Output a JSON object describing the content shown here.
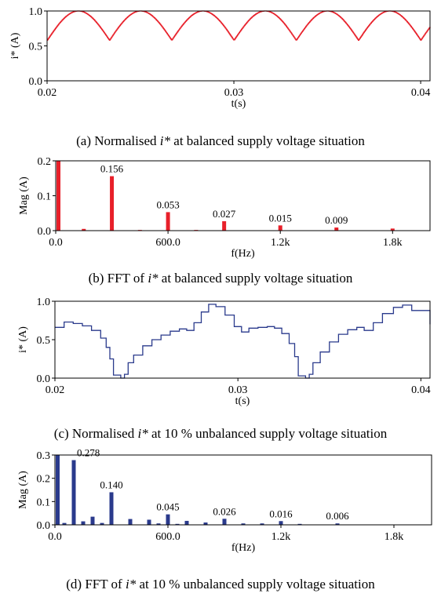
{
  "chart_data": [
    {
      "id": "a",
      "type": "line",
      "caption": {
        "prefix": "(a)  Normalised ",
        "var": "i*",
        "suffix": " at balanced supply voltage situation"
      },
      "xlabel": "t(s)",
      "ylabel": "i* (A)",
      "xlim": [
        0.02,
        0.0405
      ],
      "ylim": [
        0,
        1
      ],
      "xticks": [
        0.02,
        0.03,
        0.04
      ],
      "xtick_labels": [
        "0.02",
        "0.03",
        "0.04"
      ],
      "yticks": [
        0,
        0.5,
        1
      ],
      "ytick_labels": [
        "0.0",
        "0.5",
        "1.0"
      ],
      "color": "#e8202a",
      "waveform": {
        "shape": "rectified-sine",
        "period": 0.003333,
        "first_min": 0.02,
        "min": 0.58,
        "max": 1.0
      }
    },
    {
      "id": "b",
      "type": "bar",
      "caption": {
        "prefix": "(b) FFT of ",
        "var": "i*",
        "suffix": " at balanced supply voltage situation"
      },
      "xlabel": "f(Hz)",
      "ylabel": "Mag (A)",
      "xlim": [
        0,
        2000
      ],
      "ylim": [
        0,
        0.2
      ],
      "xticks": [
        0,
        600,
        1200,
        1800
      ],
      "xtick_labels": [
        "0.0",
        "600.0",
        "1.2k",
        "1.8k"
      ],
      "yticks": [
        0,
        0.1,
        0.2
      ],
      "ytick_labels": [
        "0.0",
        "0.1",
        "0.2"
      ],
      "color": "#e8202a",
      "bars": [
        {
          "f": 0,
          "v": 0.2
        },
        {
          "f": 150,
          "v": 0.005
        },
        {
          "f": 300,
          "v": 0.156,
          "label": "0.156"
        },
        {
          "f": 450,
          "v": 0.002
        },
        {
          "f": 600,
          "v": 0.053,
          "label": "0.053"
        },
        {
          "f": 750,
          "v": 0.002
        },
        {
          "f": 900,
          "v": 0.027,
          "label": "0.027"
        },
        {
          "f": 1200,
          "v": 0.015,
          "label": "0.015"
        },
        {
          "f": 1500,
          "v": 0.009,
          "label": "0.009"
        },
        {
          "f": 1800,
          "v": 0.006
        }
      ]
    },
    {
      "id": "c",
      "type": "line",
      "caption": {
        "prefix": "(c) Normalised ",
        "var": "i*",
        "suffix": " at 10 % unbalanced supply voltage situation"
      },
      "xlabel": "t(s)",
      "ylabel": "i* (A)",
      "xlim": [
        0.02,
        0.0405
      ],
      "ylim": [
        0,
        1
      ],
      "xticks": [
        0.02,
        0.03,
        0.04
      ],
      "xtick_labels": [
        "0.02",
        "0.03",
        "0.04"
      ],
      "yticks": [
        0,
        0.5,
        1
      ],
      "ytick_labels": [
        "0.0",
        "0.5",
        "1.0"
      ],
      "color": "#2a3a8c",
      "waveform": {
        "shape": "unbalanced",
        "points": [
          [
            0.02,
            0.66
          ],
          [
            0.0205,
            0.73
          ],
          [
            0.021,
            0.71
          ],
          [
            0.0215,
            0.68
          ],
          [
            0.022,
            0.62
          ],
          [
            0.0225,
            0.52
          ],
          [
            0.0228,
            0.4
          ],
          [
            0.023,
            0.25
          ],
          [
            0.0232,
            0.04
          ],
          [
            0.0236,
            0.0
          ],
          [
            0.0238,
            0.05
          ],
          [
            0.024,
            0.2
          ],
          [
            0.0243,
            0.3
          ],
          [
            0.0248,
            0.42
          ],
          [
            0.0253,
            0.5
          ],
          [
            0.0258,
            0.56
          ],
          [
            0.0263,
            0.61
          ],
          [
            0.0268,
            0.64
          ],
          [
            0.0272,
            0.62
          ],
          [
            0.0276,
            0.72
          ],
          [
            0.028,
            0.86
          ],
          [
            0.0284,
            0.96
          ],
          [
            0.0288,
            0.93
          ],
          [
            0.0293,
            0.82
          ],
          [
            0.0298,
            0.67
          ],
          [
            0.0302,
            0.6
          ],
          [
            0.0306,
            0.65
          ],
          [
            0.0311,
            0.66
          ],
          [
            0.0316,
            0.67
          ],
          [
            0.032,
            0.65
          ],
          [
            0.0324,
            0.58
          ],
          [
            0.0328,
            0.45
          ],
          [
            0.0331,
            0.28
          ],
          [
            0.0333,
            0.03
          ],
          [
            0.0337,
            0.0
          ],
          [
            0.0339,
            0.05
          ],
          [
            0.0341,
            0.2
          ],
          [
            0.0345,
            0.34
          ],
          [
            0.035,
            0.47
          ],
          [
            0.0355,
            0.57
          ],
          [
            0.036,
            0.63
          ],
          [
            0.0365,
            0.66
          ],
          [
            0.0369,
            0.62
          ],
          [
            0.0374,
            0.72
          ],
          [
            0.0379,
            0.84
          ],
          [
            0.0385,
            0.92
          ],
          [
            0.039,
            0.95
          ],
          [
            0.0395,
            0.88
          ],
          [
            0.0405,
            0.7
          ]
        ]
      }
    },
    {
      "id": "d",
      "type": "bar",
      "caption": {
        "prefix": "(d) FFT of ",
        "var": "i*",
        "suffix": " at 10 % unbalanced supply voltage situation"
      },
      "xlabel": "f(Hz)",
      "ylabel": "Mag (A)",
      "xlim": [
        0,
        2000
      ],
      "ylim": [
        0,
        0.3
      ],
      "xticks": [
        0,
        600,
        1200,
        1800
      ],
      "xtick_labels": [
        "0.0",
        "600.0",
        "1.2k",
        "1.8k"
      ],
      "yticks": [
        0,
        0.1,
        0.2,
        0.3
      ],
      "ytick_labels": [
        "0.0",
        "0.1",
        "0.2",
        "0.3"
      ],
      "color": "#2a3a8c",
      "bars": [
        {
          "f": 0,
          "v": 0.3
        },
        {
          "f": 50,
          "v": 0.008
        },
        {
          "f": 100,
          "v": 0.278,
          "label": "0.278"
        },
        {
          "f": 150,
          "v": 0.015
        },
        {
          "f": 200,
          "v": 0.035
        },
        {
          "f": 250,
          "v": 0.008
        },
        {
          "f": 300,
          "v": 0.14,
          "label": "0.140"
        },
        {
          "f": 400,
          "v": 0.025
        },
        {
          "f": 500,
          "v": 0.022
        },
        {
          "f": 550,
          "v": 0.006
        },
        {
          "f": 600,
          "v": 0.045,
          "label": "0.045"
        },
        {
          "f": 650,
          "v": 0.004
        },
        {
          "f": 700,
          "v": 0.017
        },
        {
          "f": 800,
          "v": 0.01
        },
        {
          "f": 900,
          "v": 0.026,
          "label": "0.026"
        },
        {
          "f": 1000,
          "v": 0.006
        },
        {
          "f": 1100,
          "v": 0.006
        },
        {
          "f": 1200,
          "v": 0.016,
          "label": "0.016"
        },
        {
          "f": 1300,
          "v": 0.004
        },
        {
          "f": 1500,
          "v": 0.006,
          "label": "0.006"
        }
      ]
    }
  ]
}
